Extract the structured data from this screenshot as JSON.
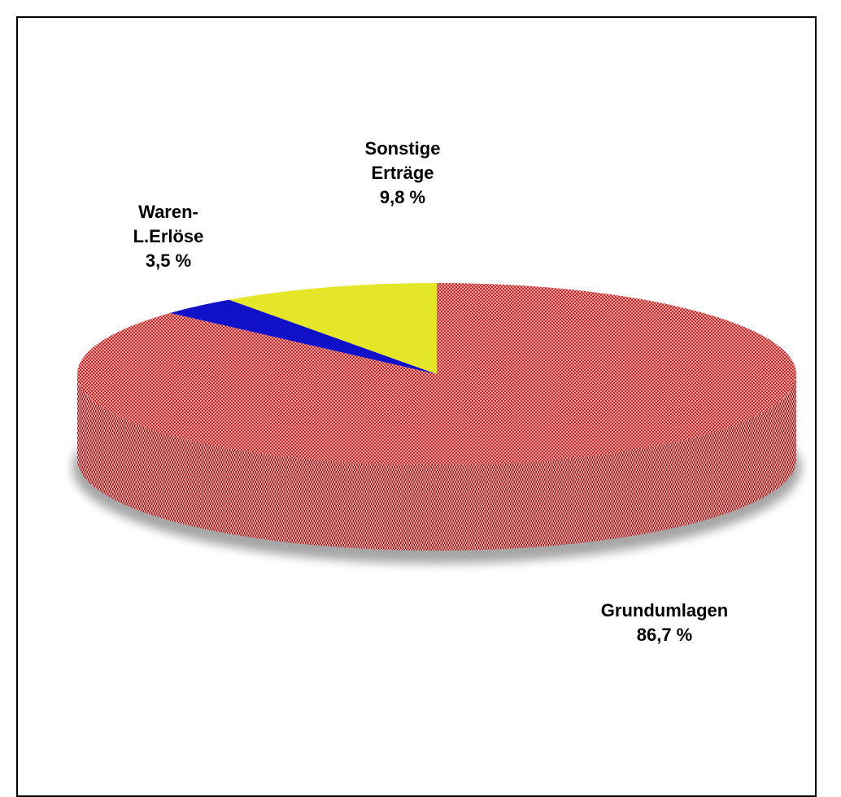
{
  "chart_data": {
    "type": "pie",
    "title": "",
    "slices": [
      {
        "label_lines": [
          "Grundumlagen",
          "86,7 %"
        ],
        "value": 86.7,
        "color": "#d03838"
      },
      {
        "label_lines": [
          "Waren-",
          "L.Erlöse",
          "3,5 %"
        ],
        "value": 3.5,
        "color": "#1010c8"
      },
      {
        "label_lines": [
          "Sonstige",
          "Erträge",
          "9,8 %"
        ],
        "value": 9.8,
        "color": "#e6e628"
      }
    ],
    "legend": "none",
    "style": "3d"
  }
}
